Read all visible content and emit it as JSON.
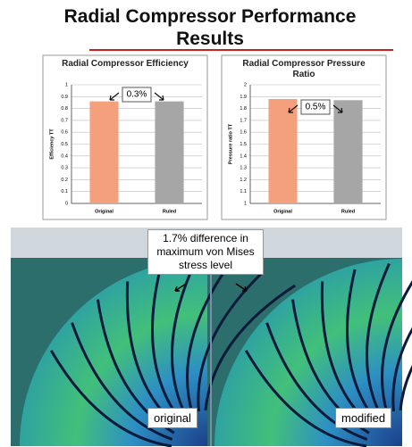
{
  "title": "Radial Compressor Performance Results",
  "chart_data": [
    {
      "type": "bar",
      "title": "Radial Compressor Efficiency",
      "y_label": "Efficiency TT",
      "categories": [
        "Original",
        "Ruled"
      ],
      "values": [
        0.86,
        0.86
      ],
      "colors": [
        "#f4a07c",
        "#a6a6a6"
      ],
      "ylim": [
        0,
        1
      ],
      "yticks": [
        0,
        0.1,
        0.2,
        0.3,
        0.4,
        0.5,
        0.6,
        0.7,
        0.8,
        0.9,
        1
      ],
      "grid": true,
      "annotation": "0.3%"
    },
    {
      "type": "bar",
      "title": "Radial Compressor Pressure Ratio",
      "y_label": "Pressure ratio TT",
      "categories": [
        "Original",
        "Ruled"
      ],
      "values": [
        1.88,
        1.87
      ],
      "colors": [
        "#f4a07c",
        "#a6a6a6"
      ],
      "ylim": [
        1,
        2
      ],
      "yticks": [
        1,
        1.1,
        1.2,
        1.3,
        1.4,
        1.5,
        1.6,
        1.7,
        1.8,
        1.9,
        2
      ],
      "grid": true,
      "annotation": "0.5%"
    }
  ],
  "image": {
    "note": "1.7% difference in maximum von Mises stress level",
    "left_label": "original",
    "right_label": "modified"
  }
}
